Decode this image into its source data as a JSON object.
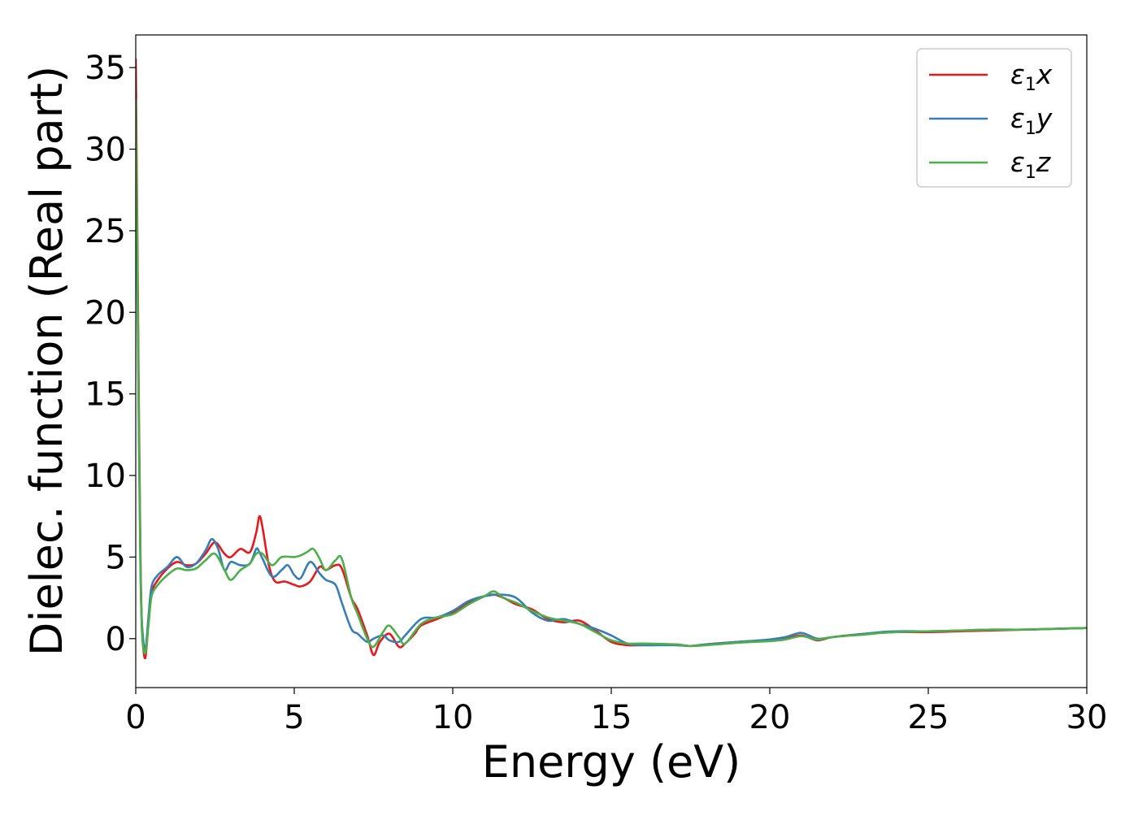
{
  "chart_data": {
    "type": "line",
    "title": "",
    "xlabel": "Energy (eV)",
    "ylabel": "Dielec. function (Real part)",
    "xlim": [
      0,
      30
    ],
    "ylim": [
      -3,
      37
    ],
    "xticks": [
      0,
      5,
      10,
      15,
      20,
      25,
      30
    ],
    "yticks": [
      0,
      5,
      10,
      15,
      20,
      25,
      30,
      35
    ],
    "grid": false,
    "legend_position": "top-right",
    "series": [
      {
        "name": "ε1x",
        "legend": {
          "base": "ε",
          "sub": "1",
          "var": "x"
        },
        "color": "#e41a1c",
        "x": [
          0.0,
          0.05,
          0.1,
          0.15,
          0.2,
          0.3,
          0.4,
          0.5,
          0.7,
          1.0,
          1.3,
          1.6,
          1.9,
          2.2,
          2.5,
          2.8,
          3.0,
          3.3,
          3.6,
          3.8,
          3.9,
          4.0,
          4.2,
          4.4,
          4.7,
          5.0,
          5.2,
          5.5,
          5.8,
          6.0,
          6.3,
          6.5,
          6.8,
          7.0,
          7.3,
          7.5,
          7.7,
          8.0,
          8.3,
          8.5,
          8.8,
          9.0,
          9.5,
          10.0,
          10.5,
          11.0,
          11.3,
          11.6,
          12.0,
          12.5,
          13.0,
          13.5,
          14.0,
          14.5,
          15.0,
          15.5,
          16.0,
          17.0,
          17.5,
          18.0,
          19.0,
          20.0,
          20.5,
          21.0,
          21.5,
          22.0,
          23.0,
          23.5,
          24.0,
          25.0,
          26.0,
          27.0,
          28.0,
          29.0,
          30.0
        ],
        "y": [
          35.5,
          25.0,
          14.0,
          5.0,
          0.5,
          -1.2,
          1.0,
          2.8,
          3.6,
          4.3,
          4.7,
          4.5,
          4.6,
          5.2,
          5.9,
          5.2,
          5.0,
          5.5,
          5.3,
          6.5,
          7.5,
          6.8,
          4.5,
          3.5,
          3.5,
          3.3,
          3.2,
          3.5,
          4.4,
          4.2,
          4.5,
          4.3,
          2.5,
          1.8,
          0.2,
          -1.0,
          -0.2,
          0.3,
          -0.5,
          -0.3,
          0.3,
          0.8,
          1.2,
          1.6,
          2.2,
          2.6,
          2.7,
          2.5,
          2.1,
          1.8,
          1.2,
          1.0,
          1.1,
          0.5,
          -0.2,
          -0.4,
          -0.4,
          -0.35,
          -0.45,
          -0.35,
          -0.2,
          -0.1,
          0.0,
          0.2,
          -0.1,
          0.1,
          0.3,
          0.35,
          0.4,
          0.4,
          0.45,
          0.5,
          0.55,
          0.6,
          0.65
        ]
      },
      {
        "name": "ε1y",
        "legend": {
          "base": "ε",
          "sub": "1",
          "var": "y"
        },
        "color": "#377eb8",
        "x": [
          0.0,
          0.05,
          0.1,
          0.15,
          0.2,
          0.3,
          0.4,
          0.5,
          0.7,
          1.0,
          1.3,
          1.6,
          1.9,
          2.2,
          2.4,
          2.6,
          2.8,
          3.0,
          3.3,
          3.6,
          3.8,
          3.9,
          4.0,
          4.3,
          4.6,
          4.8,
          5.0,
          5.2,
          5.5,
          5.8,
          6.0,
          6.3,
          6.5,
          6.8,
          7.0,
          7.3,
          7.5,
          7.8,
          8.0,
          8.3,
          8.5,
          9.0,
          9.5,
          10.0,
          10.5,
          11.0,
          11.5,
          12.0,
          12.5,
          13.0,
          13.5,
          14.0,
          14.5,
          15.0,
          15.5,
          16.0,
          17.0,
          17.5,
          18.0,
          19.0,
          20.0,
          20.5,
          21.0,
          21.5,
          22.0,
          23.0,
          23.5,
          24.0,
          25.0,
          26.0,
          27.0,
          28.0,
          29.0,
          30.0
        ],
        "y": [
          32.0,
          22.0,
          12.0,
          4.0,
          0.8,
          -0.7,
          1.3,
          3.2,
          3.9,
          4.4,
          5.0,
          4.4,
          4.6,
          5.4,
          6.1,
          5.5,
          4.2,
          4.7,
          4.5,
          4.6,
          5.5,
          5.3,
          4.9,
          3.8,
          4.2,
          4.5,
          3.9,
          3.7,
          4.7,
          4.0,
          3.6,
          3.3,
          2.2,
          0.6,
          0.3,
          -0.2,
          0.0,
          0.2,
          -0.1,
          -0.2,
          0.2,
          1.2,
          1.3,
          1.7,
          2.3,
          2.6,
          2.7,
          2.5,
          1.6,
          1.1,
          1.2,
          0.9,
          0.6,
          0.2,
          -0.3,
          -0.4,
          -0.4,
          -0.45,
          -0.35,
          -0.2,
          -0.05,
          0.1,
          0.35,
          0.0,
          0.1,
          0.3,
          0.4,
          0.45,
          0.45,
          0.5,
          0.55,
          0.55,
          0.6,
          0.65
        ]
      },
      {
        "name": "ε1z",
        "legend": {
          "base": "ε",
          "sub": "1",
          "var": "z"
        },
        "color": "#4daf4a",
        "x": [
          0.0,
          0.05,
          0.1,
          0.15,
          0.2,
          0.3,
          0.4,
          0.5,
          0.7,
          1.0,
          1.3,
          1.6,
          1.9,
          2.2,
          2.5,
          2.8,
          3.0,
          3.3,
          3.6,
          3.8,
          4.0,
          4.3,
          4.6,
          5.0,
          5.2,
          5.4,
          5.6,
          5.8,
          6.0,
          6.3,
          6.5,
          6.8,
          7.0,
          7.3,
          7.5,
          7.8,
          8.0,
          8.3,
          8.5,
          9.0,
          9.5,
          10.0,
          10.5,
          11.0,
          11.3,
          11.6,
          12.0,
          12.5,
          13.0,
          13.5,
          14.0,
          14.5,
          15.0,
          15.5,
          16.0,
          17.0,
          17.5,
          18.0,
          19.0,
          20.0,
          20.5,
          21.0,
          21.5,
          22.0,
          23.0,
          23.5,
          24.0,
          25.0,
          26.0,
          27.0,
          28.0,
          29.0,
          30.0
        ],
        "y": [
          33.0,
          23.0,
          13.0,
          4.5,
          0.3,
          -0.9,
          0.8,
          2.6,
          3.3,
          3.9,
          4.3,
          4.2,
          4.3,
          4.8,
          5.2,
          4.2,
          3.6,
          4.2,
          4.6,
          5.2,
          5.2,
          4.5,
          5.0,
          5.0,
          5.1,
          5.3,
          5.5,
          4.9,
          4.2,
          4.8,
          4.9,
          2.5,
          1.5,
          0.0,
          -0.5,
          0.4,
          0.8,
          0.1,
          -0.3,
          0.9,
          1.3,
          1.5,
          2.1,
          2.6,
          2.9,
          2.5,
          2.2,
          1.7,
          1.3,
          1.1,
          0.9,
          0.4,
          -0.1,
          -0.3,
          -0.3,
          -0.35,
          -0.45,
          -0.4,
          -0.25,
          -0.15,
          -0.05,
          0.15,
          -0.05,
          0.1,
          0.25,
          0.35,
          0.4,
          0.45,
          0.5,
          0.55,
          0.55,
          0.6,
          0.65
        ]
      }
    ]
  }
}
